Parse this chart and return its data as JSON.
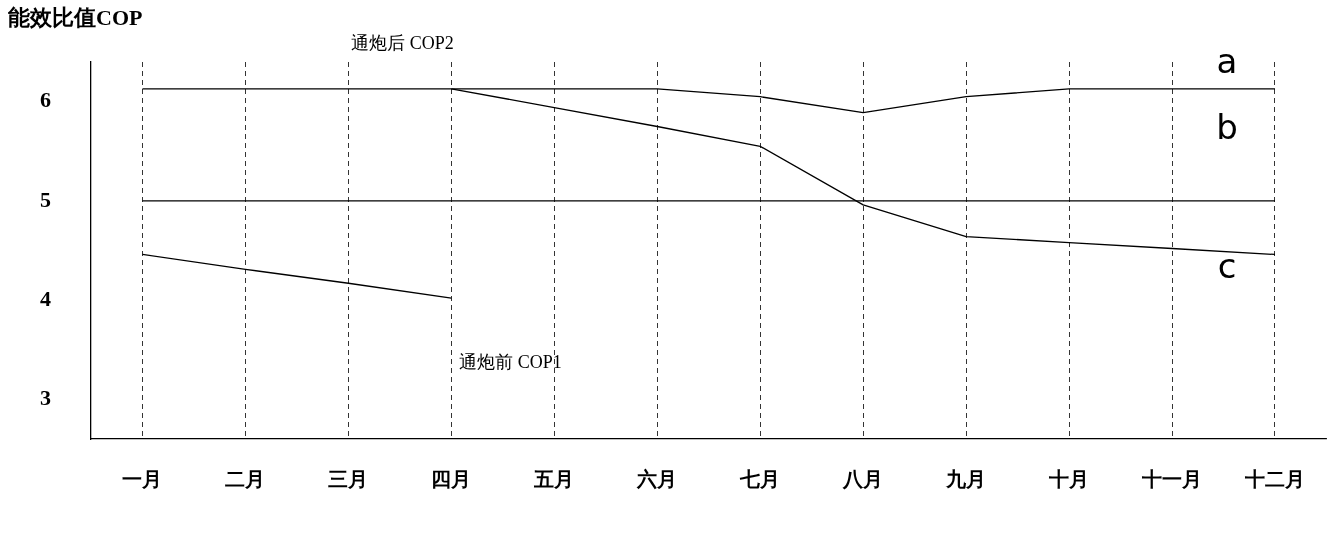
{
  "chart_data": {
    "type": "line",
    "ylabel": "能效比值COP",
    "categories": [
      "一月",
      "二月",
      "三月",
      "四月",
      "五月",
      "六月",
      "七月",
      "八月",
      "九月",
      "十月",
      "十一月",
      "十二月"
    ],
    "series": [
      {
        "color": "#000000",
        "values": [
          6.13,
          6.13,
          6.13,
          6.13,
          6.13,
          6.13,
          6.05,
          5.89,
          6.05,
          6.13,
          6.13,
          6.13
        ]
      },
      {
        "color": "#000000",
        "values": [
          5.0,
          5.0,
          5.0,
          5.0,
          5.0,
          5.0,
          5.0,
          5.0,
          5.0,
          5.0,
          5.0,
          5.0
        ]
      },
      {
        "color": "#000000",
        "values": [
          4.46,
          4.31,
          4.17,
          4.02,
          null,
          null,
          null,
          null,
          null,
          null,
          null,
          null
        ]
      },
      {
        "color": "#000000",
        "values": [
          null,
          null,
          null,
          6.13,
          5.94,
          5.75,
          5.55,
          4.96,
          4.64,
          4.58,
          4.52,
          4.46
        ]
      }
    ],
    "ylim": [
      2.6,
      6.4
    ],
    "yticks": [
      3,
      4,
      5,
      6
    ],
    "grid": "x",
    "marker": "none",
    "annotations": [
      "通炮后 COP2",
      "通炮前 COP1",
      "a",
      "b",
      "c"
    ]
  }
}
